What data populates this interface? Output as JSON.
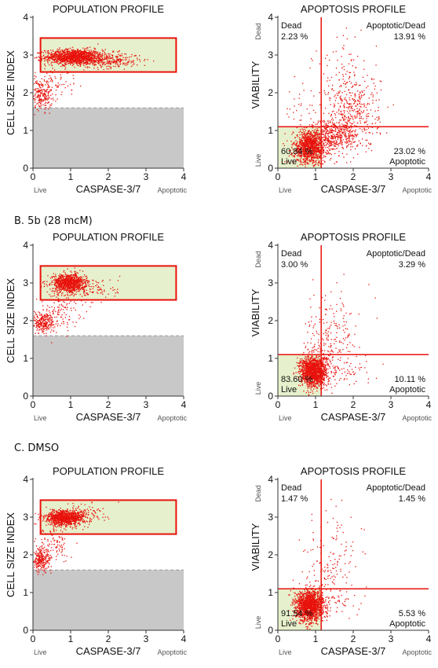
{
  "sections": [
    {
      "label": ""
    },
    {
      "label": "B. 5b (28 mcM)"
    },
    {
      "label": "C. DMSO"
    }
  ],
  "colors": {
    "dots": "#e8120c",
    "gate_fill": "#e6f0cc",
    "gate_stroke": "#e8120c",
    "debris_fill": "#c8c8c8",
    "debris_line": "#999999",
    "quadrant_line": "#e8120c",
    "live_fill": "#e6f0cc",
    "small_label": "#555555"
  },
  "chart_data": [
    {
      "type": "scatter",
      "title": "POPULATION PROFILE",
      "xlabel": "CASPASE-3/7",
      "ylabel": "CELL SIZE INDEX",
      "x_left_label": "Live",
      "x_right_label": "Apoptotic",
      "xlim": [
        0,
        4
      ],
      "ylim": [
        0,
        4
      ],
      "x_ticks": [
        "0",
        "1",
        "2",
        "3",
        "4"
      ],
      "y_ticks": [
        "0",
        "1",
        "2",
        "3",
        "4"
      ],
      "gate": {
        "x": [
          0.2,
          3.8
        ],
        "y": [
          2.55,
          3.45
        ]
      },
      "debris_threshold": 1.6,
      "clusters": [
        {
          "n": 1300,
          "cx": 1.1,
          "cy": 2.95,
          "sx": 0.38,
          "sy": 0.1
        },
        {
          "n": 260,
          "cx": 2.05,
          "cy": 2.85,
          "sx": 0.4,
          "sy": 0.1
        },
        {
          "n": 220,
          "cx": 0.22,
          "cy": 1.95,
          "sx": 0.15,
          "sy": 0.2
        },
        {
          "n": 70,
          "cx": 0.6,
          "cy": 2.3,
          "sx": 0.3,
          "sy": 0.2
        }
      ]
    },
    {
      "type": "scatter",
      "title": "APOPTOSIS PROFILE",
      "xlabel": "CASPASE-3/7",
      "ylabel": "VIABILITY",
      "y_low_label": "Live",
      "y_high_label": "Dead",
      "x_left_label": "Live",
      "x_right_label": "Apoptotic",
      "xlim": [
        0,
        4
      ],
      "ylim": [
        0,
        4
      ],
      "x_ticks": [
        "0",
        "1",
        "2",
        "3",
        "4"
      ],
      "y_ticks": [
        "0",
        "1",
        "2",
        "3",
        "4"
      ],
      "quadrant_x": 1.15,
      "quadrant_y": 1.1,
      "quadrants": {
        "dead": {
          "name": "Dead",
          "pct": "2.23 %"
        },
        "apoptotic_dead": {
          "name": "Apoptotic/Dead",
          "pct": "13.91 %"
        },
        "live": {
          "name": "Live",
          "pct": "60.84 %"
        },
        "apoptotic": {
          "name": "Apoptotic",
          "pct": "23.02 %"
        }
      },
      "clusters": [
        {
          "n": 1100,
          "cx": 0.85,
          "cy": 0.55,
          "sx": 0.22,
          "sy": 0.22
        },
        {
          "n": 420,
          "cx": 1.5,
          "cy": 0.85,
          "sx": 0.32,
          "sy": 0.2
        },
        {
          "n": 380,
          "cx": 2.0,
          "cy": 1.5,
          "sx": 0.35,
          "sy": 0.5
        },
        {
          "n": 90,
          "cx": 1.8,
          "cy": 2.4,
          "sx": 0.45,
          "sy": 0.6
        },
        {
          "n": 30,
          "cx": 0.6,
          "cy": 1.6,
          "sx": 0.25,
          "sy": 0.3
        }
      ]
    },
    {
      "type": "scatter",
      "title": "POPULATION PROFILE",
      "xlabel": "CASPASE-3/7",
      "ylabel": "CELL SIZE INDEX",
      "x_left_label": "Live",
      "x_right_label": "Apoptotic",
      "xlim": [
        0,
        4
      ],
      "ylim": [
        0,
        4
      ],
      "x_ticks": [
        "0",
        "1",
        "2",
        "3",
        "4"
      ],
      "y_ticks": [
        "0",
        "1",
        "2",
        "3",
        "4"
      ],
      "gate": {
        "x": [
          0.2,
          3.8
        ],
        "y": [
          2.55,
          3.45
        ]
      },
      "debris_threshold": 1.6,
      "clusters": [
        {
          "n": 900,
          "cx": 0.95,
          "cy": 3.0,
          "sx": 0.22,
          "sy": 0.12
        },
        {
          "n": 120,
          "cx": 1.5,
          "cy": 2.85,
          "sx": 0.4,
          "sy": 0.15
        },
        {
          "n": 260,
          "cx": 0.28,
          "cy": 1.95,
          "sx": 0.15,
          "sy": 0.15
        },
        {
          "n": 120,
          "cx": 0.7,
          "cy": 2.3,
          "sx": 0.3,
          "sy": 0.25
        }
      ]
    },
    {
      "type": "scatter",
      "title": "APOPTOSIS PROFILE",
      "xlabel": "CASPASE-3/7",
      "ylabel": "VIABILITY",
      "y_low_label": "Live",
      "y_high_label": "Dead",
      "x_left_label": "Live",
      "x_right_label": "Apoptotic",
      "xlim": [
        0,
        4
      ],
      "ylim": [
        0,
        4
      ],
      "x_ticks": [
        "0",
        "1",
        "2",
        "3",
        "4"
      ],
      "y_ticks": [
        "0",
        "1",
        "2",
        "3",
        "4"
      ],
      "quadrant_x": 1.15,
      "quadrant_y": 1.1,
      "quadrants": {
        "dead": {
          "name": "Dead",
          "pct": "3.00 %"
        },
        "apoptotic_dead": {
          "name": "Apoptotic/Dead",
          "pct": "3.29 %"
        },
        "live": {
          "name": "Live",
          "pct": "83.60 %"
        },
        "apoptotic": {
          "name": "Apoptotic",
          "pct": "10.11 %"
        }
      },
      "clusters": [
        {
          "n": 1400,
          "cx": 0.95,
          "cy": 0.65,
          "sx": 0.18,
          "sy": 0.2
        },
        {
          "n": 160,
          "cx": 1.3,
          "cy": 1.2,
          "sx": 0.3,
          "sy": 0.5
        },
        {
          "n": 90,
          "cx": 1.5,
          "cy": 2.0,
          "sx": 0.35,
          "sy": 0.55
        },
        {
          "n": 60,
          "cx": 1.8,
          "cy": 0.7,
          "sx": 0.35,
          "sy": 0.25
        }
      ]
    },
    {
      "type": "scatter",
      "title": "POPULATION PROFILE",
      "xlabel": "CASPASE-3/7",
      "ylabel": "CELL SIZE INDEX",
      "x_left_label": "Live",
      "x_right_label": "Apoptotic",
      "xlim": [
        0,
        4
      ],
      "ylim": [
        0,
        4
      ],
      "x_ticks": [
        "0",
        "1",
        "2",
        "3",
        "4"
      ],
      "y_ticks": [
        "0",
        "1",
        "2",
        "3",
        "4"
      ],
      "gate": {
        "x": [
          0.2,
          3.8
        ],
        "y": [
          2.55,
          3.45
        ]
      },
      "debris_threshold": 1.6,
      "clusters": [
        {
          "n": 1000,
          "cx": 0.85,
          "cy": 2.98,
          "sx": 0.25,
          "sy": 0.1
        },
        {
          "n": 100,
          "cx": 1.3,
          "cy": 3.1,
          "sx": 0.35,
          "sy": 0.12
        },
        {
          "n": 250,
          "cx": 0.22,
          "cy": 1.85,
          "sx": 0.13,
          "sy": 0.15
        },
        {
          "n": 110,
          "cx": 0.6,
          "cy": 2.3,
          "sx": 0.25,
          "sy": 0.25
        }
      ]
    },
    {
      "type": "scatter",
      "title": "APOPTOSIS PROFILE",
      "xlabel": "CASPASE-3/7",
      "ylabel": "VIABILITY",
      "y_low_label": "Live",
      "y_high_label": "Dead",
      "x_left_label": "Live",
      "x_right_label": "Apoptotic",
      "xlim": [
        0,
        4
      ],
      "ylim": [
        0,
        4
      ],
      "x_ticks": [
        "0",
        "1",
        "2",
        "3",
        "4"
      ],
      "y_ticks": [
        "0",
        "1",
        "2",
        "3",
        "4"
      ],
      "quadrant_x": 1.15,
      "quadrant_y": 1.1,
      "quadrants": {
        "dead": {
          "name": "Dead",
          "pct": "1.47 %"
        },
        "apoptotic_dead": {
          "name": "Apoptotic/Dead",
          "pct": "1.45 %"
        },
        "live": {
          "name": "Live",
          "pct": "91.54 %"
        },
        "apoptotic": {
          "name": "Apoptotic",
          "pct": "5.53 %"
        }
      },
      "clusters": [
        {
          "n": 1500,
          "cx": 0.85,
          "cy": 0.65,
          "sx": 0.18,
          "sy": 0.2
        },
        {
          "n": 110,
          "cx": 1.3,
          "cy": 1.3,
          "sx": 0.3,
          "sy": 0.55
        },
        {
          "n": 70,
          "cx": 1.5,
          "cy": 2.2,
          "sx": 0.35,
          "sy": 0.6
        },
        {
          "n": 30,
          "cx": 1.7,
          "cy": 0.7,
          "sx": 0.3,
          "sy": 0.2
        }
      ]
    }
  ]
}
